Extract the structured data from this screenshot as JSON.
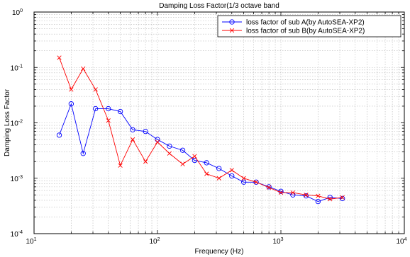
{
  "chart_data": {
    "type": "line",
    "title": "Damping Loss Factor(1/3 octave band",
    "xlabel": "Frequency (Hz)",
    "ylabel": "Damping Loss Factor",
    "xscale": "log",
    "yscale": "log",
    "xlim": [
      10,
      10000
    ],
    "ylim": [
      0.0001,
      1
    ],
    "x_ticks": [
      {
        "base": "10",
        "exp": "1"
      },
      {
        "base": "10",
        "exp": "2"
      },
      {
        "base": "10",
        "exp": "3"
      },
      {
        "base": "10",
        "exp": "4"
      }
    ],
    "y_ticks": [
      {
        "base": "10",
        "exp": "-4"
      },
      {
        "base": "10",
        "exp": "-3"
      },
      {
        "base": "10",
        "exp": "-2"
      },
      {
        "base": "10",
        "exp": "-1"
      },
      {
        "base": "10",
        "exp": "0"
      }
    ],
    "grid": true,
    "legend_position": "top-right",
    "x": [
      16,
      20,
      25,
      31.5,
      40,
      50,
      63,
      80,
      100,
      125,
      160,
      200,
      250,
      315,
      400,
      500,
      630,
      800,
      1000,
      1250,
      1600,
      2000,
      2500,
      3150
    ],
    "series": [
      {
        "name": "loss factor of sub A(by AutoSEA-XP2)",
        "color": "#0000ff",
        "marker": "circle",
        "values": [
          0.006,
          0.022,
          0.0028,
          0.018,
          0.018,
          0.016,
          0.0075,
          0.007,
          0.005,
          0.0038,
          0.0032,
          0.0021,
          0.0019,
          0.0015,
          0.0011,
          0.00085,
          0.00085,
          0.0007,
          0.00058,
          0.0005,
          0.00048,
          0.00038,
          0.00045,
          0.00043
        ]
      },
      {
        "name": "loss factor of sub B(by AutoSEA-XP2)",
        "color": "#ff0000",
        "marker": "x",
        "values": [
          0.15,
          0.04,
          0.095,
          0.04,
          0.011,
          0.0017,
          0.005,
          0.002,
          0.0045,
          0.0028,
          0.0018,
          0.0025,
          0.0012,
          0.001,
          0.0014,
          0.001,
          0.00085,
          0.00068,
          0.00055,
          0.00055,
          0.0005,
          0.00048,
          0.00042,
          0.00045
        ]
      }
    ]
  }
}
